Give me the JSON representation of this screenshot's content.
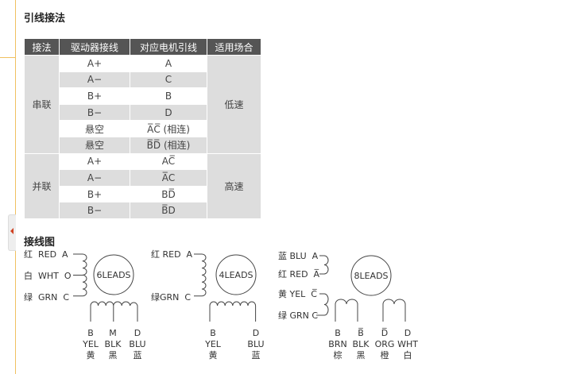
{
  "section1_title": "引线接法",
  "section2_title": "接线图",
  "table": {
    "headers": [
      "接法",
      "驱动器接线",
      "对应电机引线",
      "适用场合"
    ],
    "groups": [
      {
        "mode": "串联",
        "use": "低速",
        "rows": [
          [
            "A+",
            "A"
          ],
          [
            "A−",
            "C"
          ],
          [
            "B+",
            "B"
          ],
          [
            "B−",
            "D"
          ],
          [
            "悬空",
            "A̅C̅ (相连)"
          ],
          [
            "悬空",
            "B̅D̅ (相连)"
          ]
        ]
      },
      {
        "mode": "并联",
        "use": "高速",
        "rows": [
          [
            "A+",
            "AC̅"
          ],
          [
            "A−",
            "A̅C"
          ],
          [
            "B+",
            "BD̅"
          ],
          [
            "B−",
            "B̅D"
          ]
        ]
      }
    ]
  },
  "diagrams": [
    {
      "label": "6LEADS",
      "left": [
        "红  RED  A",
        "白  WHT  O",
        "绿  GRN  C"
      ],
      "bottom": [
        [
          "B",
          "YEL",
          "黄"
        ],
        [
          "M",
          "BLK",
          "黑"
        ],
        [
          "D",
          "BLU",
          "蓝"
        ]
      ]
    },
    {
      "label": "4LEADS",
      "left": [
        "红 RED  A",
        "绿GRN  C"
      ],
      "bottom": [
        [
          "B",
          "YEL",
          "黄"
        ],
        [
          "D",
          "BLU",
          "蓝"
        ]
      ]
    },
    {
      "label": "8LEADS",
      "left": [
        "蓝 BLU  A",
        "红 RED  A̅",
        "黄 YEL  C̅",
        "绿 GRN C"
      ],
      "bottom": [
        [
          "B",
          "BRN",
          "棕"
        ],
        [
          "B̅",
          "BLK",
          "黑"
        ],
        [
          "D̅",
          "ORG",
          "橙"
        ],
        [
          "D",
          "WHT",
          "白"
        ]
      ]
    }
  ]
}
